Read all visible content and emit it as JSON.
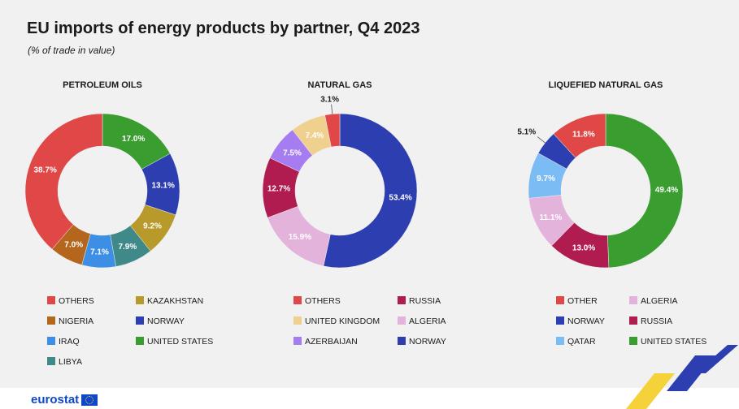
{
  "header": {
    "title": "EU imports of energy products by partner, Q4 2023",
    "subtitle": "(% of trade in value)"
  },
  "footer": {
    "logo_text": "eurostat"
  },
  "chart_data": [
    {
      "type": "pie",
      "title": "PETROLEUM OILS",
      "slices": [
        {
          "label": "UNITED STATES",
          "value": 17.0,
          "display": "17.0%",
          "color": "#3a9d2f"
        },
        {
          "label": "NORWAY",
          "value": 13.1,
          "display": "13.1%",
          "color": "#2d3fb0"
        },
        {
          "label": "KAZAKHSTAN",
          "value": 9.2,
          "display": "9.2%",
          "color": "#b89a2a"
        },
        {
          "label": "LIBYA",
          "value": 7.9,
          "display": "7.9%",
          "color": "#3f8a88"
        },
        {
          "label": "IRAQ",
          "value": 7.1,
          "display": "7.1%",
          "color": "#3d8fe6"
        },
        {
          "label": "NIGERIA",
          "value": 7.0,
          "display": "7.0%",
          "color": "#b4661d"
        },
        {
          "label": "OTHERS",
          "value": 38.7,
          "display": "38.7%",
          "color": "#e04848"
        }
      ],
      "legend": [
        [
          "OTHERS",
          "KAZAKHSTAN"
        ],
        [
          "NIGERIA",
          "NORWAY"
        ],
        [
          "IRAQ",
          "UNITED STATES"
        ],
        [
          "LIBYA"
        ]
      ]
    },
    {
      "type": "pie",
      "title": "NATURAL GAS",
      "slices": [
        {
          "label": "NORWAY",
          "value": 53.4,
          "display": "53.4%",
          "color": "#2d3fb0"
        },
        {
          "label": "ALGERIA",
          "value": 15.9,
          "display": "15.9%",
          "color": "#e3b3dc"
        },
        {
          "label": "RUSSIA",
          "value": 12.7,
          "display": "12.7%",
          "color": "#b11c50"
        },
        {
          "label": "AZERBAIJAN",
          "value": 7.5,
          "display": "7.5%",
          "color": "#a67df0"
        },
        {
          "label": "UNITED KINGDOM",
          "value": 7.4,
          "display": "7.4%",
          "color": "#f0d08f"
        },
        {
          "label": "OTHERS",
          "value": 3.1,
          "display": "3.1%",
          "color": "#e04848"
        }
      ],
      "legend": [
        [
          "OTHERS",
          "RUSSIA"
        ],
        [
          "UNITED KINGDOM",
          "ALGERIA"
        ],
        [
          "AZERBAIJAN",
          "NORWAY"
        ]
      ]
    },
    {
      "type": "pie",
      "title": "LIQUEFIED NATURAL GAS",
      "slices": [
        {
          "label": "UNITED STATES",
          "value": 49.4,
          "display": "49.4%",
          "color": "#3a9d2f"
        },
        {
          "label": "RUSSIA",
          "value": 13.0,
          "display": "13.0%",
          "color": "#b11c50"
        },
        {
          "label": "ALGERIA",
          "value": 11.1,
          "display": "11.1%",
          "color": "#e3b3dc"
        },
        {
          "label": "QATAR",
          "value": 9.7,
          "display": "9.7%",
          "color": "#7cbcf5"
        },
        {
          "label": "NORWAY",
          "value": 5.1,
          "display": "5.1%",
          "color": "#2d3fb0"
        },
        {
          "label": "OTHER",
          "value": 11.8,
          "display": "11.8%",
          "color": "#e04848"
        }
      ],
      "legend": [
        [
          "OTHER",
          "ALGERIA"
        ],
        [
          "NORWAY",
          "RUSSIA"
        ],
        [
          "QATAR",
          "UNITED STATES"
        ]
      ]
    }
  ]
}
